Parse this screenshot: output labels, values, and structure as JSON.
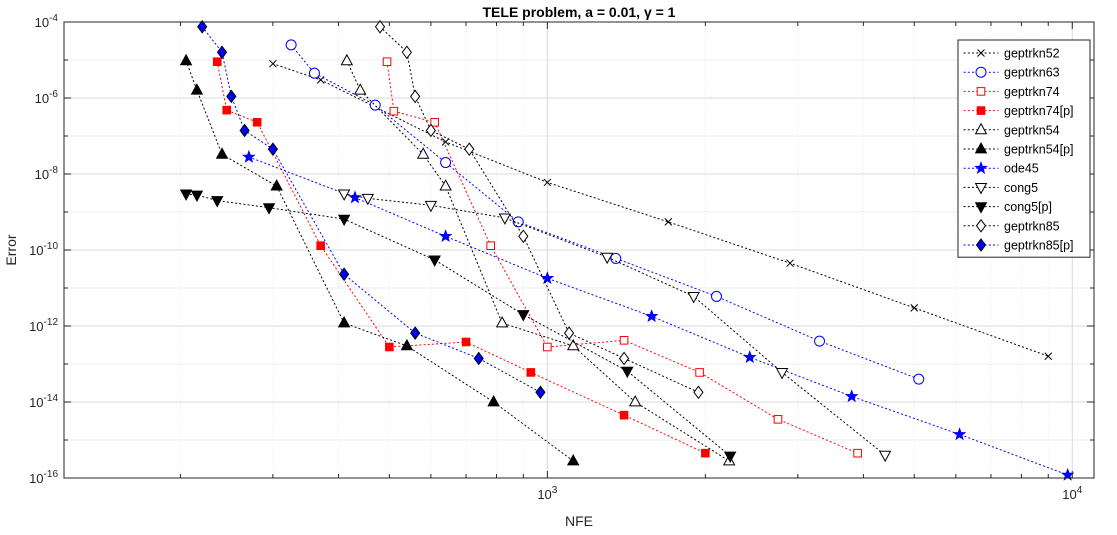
{
  "chart_data": {
    "type": "scatter",
    "title": "TELE problem, a = 0.01, γ = 1",
    "xlabel": "NFE",
    "ylabel": "Error",
    "xscale": "log",
    "yscale": "log",
    "xlim": [
      120,
      11000
    ],
    "ylim": [
      1e-16,
      0.0001
    ],
    "grid": true,
    "legend_placement": "top-right",
    "x_ticks": [
      {
        "value": 1000,
        "base": "10",
        "exp": "3"
      },
      {
        "value": 10000,
        "base": "10",
        "exp": "4"
      }
    ],
    "y_ticks": [
      {
        "value": 0.0001,
        "base": "10",
        "exp": "-4"
      },
      {
        "value": 1e-06,
        "base": "10",
        "exp": "-6"
      },
      {
        "value": 1e-08,
        "base": "10",
        "exp": "-8"
      },
      {
        "value": 1e-10,
        "base": "10",
        "exp": "-10"
      },
      {
        "value": 1e-12,
        "base": "10",
        "exp": "-12"
      },
      {
        "value": 1e-14,
        "base": "10",
        "exp": "-14"
      },
      {
        "value": 1e-16,
        "base": "10",
        "exp": "-16"
      }
    ],
    "series": [
      {
        "name": "geptrkn52",
        "color": "#000000",
        "marker": "x",
        "filled": false,
        "x": [
          300,
          370,
          640,
          1000,
          1700,
          2900,
          5000,
          9000
        ],
        "y": [
          8e-06,
          3e-06,
          7e-08,
          6e-09,
          5.5e-10,
          4.5e-11,
          3e-12,
          1.6e-13
        ]
      },
      {
        "name": "geptrkn63",
        "color": "#0000ff",
        "marker": "circle",
        "filled": false,
        "x": [
          325,
          360,
          470,
          640,
          880,
          1350,
          2100,
          3300,
          5100
        ],
        "y": [
          2.5e-05,
          4.5e-06,
          6.5e-07,
          2e-08,
          5.5e-10,
          6e-11,
          6e-12,
          4e-13,
          4e-14
        ]
      },
      {
        "name": "geptrkn74",
        "color": "#ff0000",
        "marker": "square",
        "filled": false,
        "x": [
          495,
          510,
          610,
          780,
          1000,
          1400,
          1950,
          2750,
          3900
        ],
        "y": [
          9e-06,
          4.5e-07,
          2.3e-07,
          1.3e-10,
          2.8e-13,
          4.2e-13,
          6e-14,
          3.5e-15,
          4.5e-16
        ]
      },
      {
        "name": "geptrkn74[p]",
        "color": "#ff0000",
        "marker": "square",
        "filled": true,
        "x": [
          235,
          245,
          280,
          370,
          500,
          700,
          930,
          1400,
          2000
        ],
        "y": [
          9e-06,
          4.8e-07,
          2.3e-07,
          1.3e-10,
          2.8e-13,
          3.8e-13,
          6e-14,
          4.5e-15,
          4.5e-16
        ]
      },
      {
        "name": "geptrkn54",
        "color": "#000000",
        "marker": "triangle-up",
        "filled": false,
        "x": [
          415,
          440,
          580,
          640,
          820,
          1120,
          1470,
          2220
        ],
        "y": [
          9.5e-06,
          1.6e-06,
          3.3e-08,
          4.8e-09,
          1.2e-12,
          3e-13,
          1e-14,
          2.8e-16
        ]
      },
      {
        "name": "geptrkn54[p]",
        "color": "#000000",
        "marker": "triangle-up",
        "filled": true,
        "x": [
          205,
          215,
          240,
          305,
          410,
          540,
          790,
          1120
        ],
        "y": [
          9.5e-06,
          1.6e-06,
          3.3e-08,
          4.8e-09,
          1.2e-12,
          3e-13,
          1e-14,
          2.8e-16
        ]
      },
      {
        "name": "ode45",
        "color": "#0000ff",
        "marker": "star",
        "filled": true,
        "x": [
          270,
          430,
          640,
          1000,
          1580,
          2430,
          3800,
          6100,
          9800
        ],
        "y": [
          2.8e-08,
          2.4e-09,
          2.3e-10,
          1.8e-11,
          1.8e-12,
          1.5e-13,
          1.4e-14,
          1.4e-15,
          1.2e-16
        ]
      },
      {
        "name": "cong5",
        "color": "#000000",
        "marker": "triangle-down",
        "filled": false,
        "x": [
          410,
          455,
          600,
          830,
          1300,
          1900,
          2800,
          4400
        ],
        "y": [
          3e-09,
          2.3e-09,
          1.5e-09,
          7e-10,
          6.5e-11,
          6e-12,
          6e-14,
          4e-16
        ]
      },
      {
        "name": "cong5[p]",
        "color": "#000000",
        "marker": "triangle-down",
        "filled": true,
        "x": [
          205,
          215,
          235,
          295,
          410,
          610,
          900,
          1420,
          2230
        ],
        "y": [
          3e-09,
          2.8e-09,
          2e-09,
          1.3e-09,
          6.5e-10,
          5.5e-11,
          2e-12,
          6.5e-14,
          3.8e-16
        ]
      },
      {
        "name": "geptrkn85",
        "color": "#000000",
        "marker": "diamond",
        "filled": false,
        "x": [
          480,
          540,
          560,
          600,
          710,
          900,
          1100,
          1400,
          1940
        ],
        "y": [
          7.5e-05,
          1.6e-05,
          1.1e-06,
          1.4e-07,
          4.5e-08,
          2.3e-10,
          6.5e-13,
          1.4e-13,
          1.8e-14
        ]
      },
      {
        "name": "geptrkn85[p]",
        "color": "#0000ff",
        "marker": "diamond",
        "filled": true,
        "x": [
          220,
          240,
          250,
          265,
          300,
          410,
          560,
          740,
          970
        ],
        "y": [
          7.5e-05,
          1.6e-05,
          1.1e-06,
          1.4e-07,
          4.5e-08,
          2.3e-11,
          6.5e-13,
          1.4e-13,
          1.8e-14
        ]
      }
    ]
  }
}
